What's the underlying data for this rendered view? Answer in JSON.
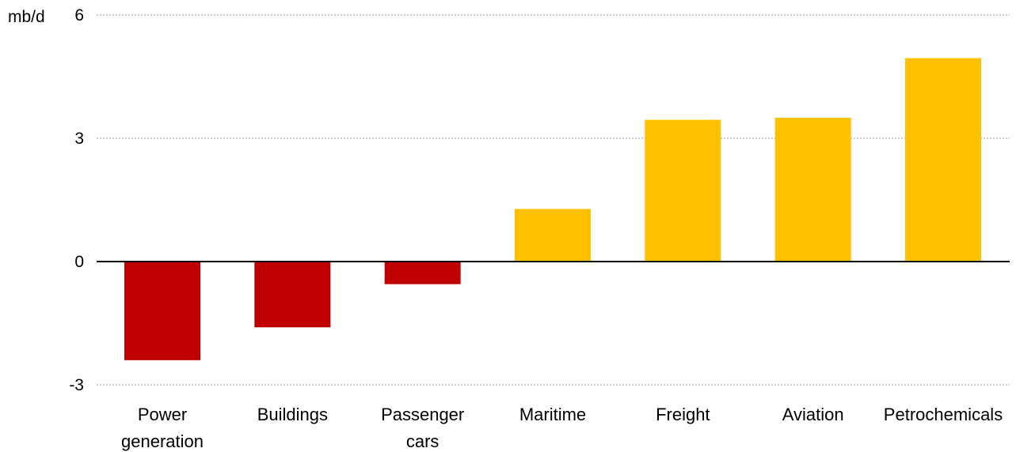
{
  "chart_data": {
    "type": "bar",
    "ylabel": "mb/d",
    "ylim": [
      -3,
      6
    ],
    "yticks": [
      6,
      3,
      0,
      -3
    ],
    "grid": true,
    "categories": [
      "Power\ngeneration",
      "Buildings",
      "Passenger\ncars",
      "Maritime",
      "Freight",
      "Aviation",
      "Petrochemicals"
    ],
    "values": [
      -2.4,
      -1.6,
      -0.55,
      1.28,
      3.45,
      3.5,
      4.95
    ],
    "colors": {
      "negative": "#C00000",
      "positive": "#FFC000",
      "grid": "#BFBFBF",
      "axis": "#000000"
    }
  }
}
